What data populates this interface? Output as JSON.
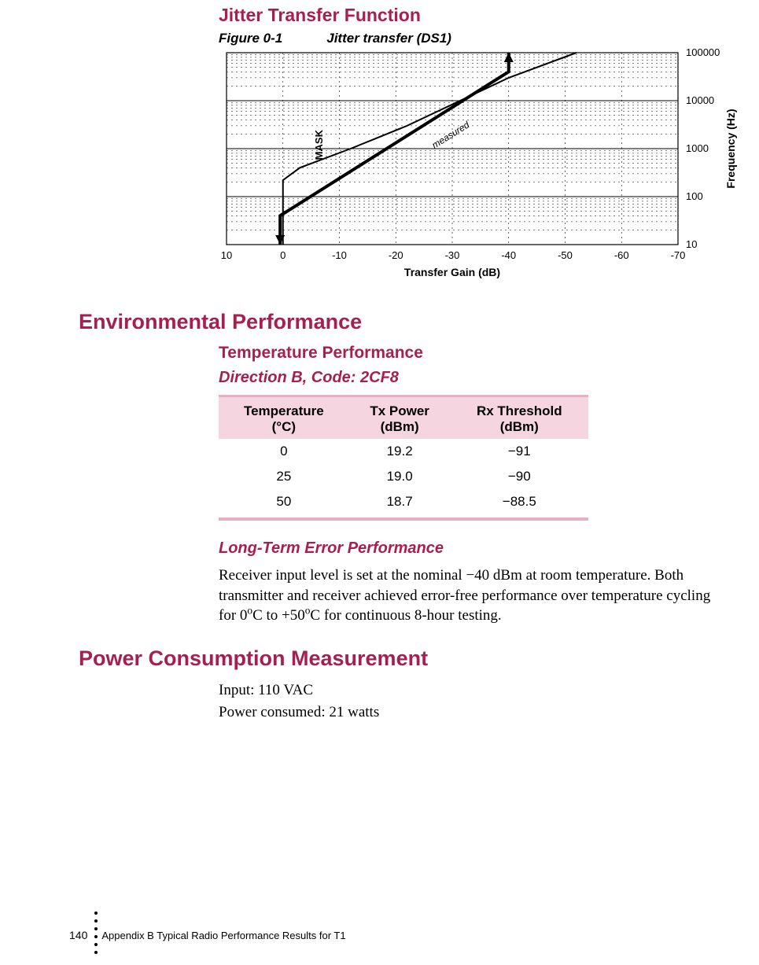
{
  "section_jitter": {
    "title": "Jitter Transfer Function",
    "figure_label": "Figure 0-1",
    "figure_title": "Jitter transfer (DS1)"
  },
  "chart": {
    "type": "line",
    "plot_bg": "#ffffff",
    "axis_color": "#000000",
    "grid_color": "#000000",
    "minor_grid_dash": "2 4",
    "x_label": "Transfer Gain (dB)",
    "x_label_fontsize": 14,
    "x_label_weight": "bold",
    "y_label": "Frequency (Hz)",
    "y_label_fontsize": 14,
    "y_label_weight": "bold",
    "x_ticks": [
      10,
      0,
      -10,
      -20,
      -30,
      -40,
      -50,
      -60,
      -70
    ],
    "y_ticks": [
      10,
      100,
      1000,
      10000,
      100000
    ],
    "y_tick_labels": [
      "10",
      "100",
      "1000",
      "10000",
      "100000"
    ],
    "y_scale": "log",
    "x_scale": "linear",
    "xlim": [
      10,
      -70
    ],
    "ylim": [
      10,
      100000
    ],
    "mask_label": "MASK",
    "measured_label": "measured",
    "mask_line": {
      "color": "#000000",
      "width": 4,
      "points": [
        {
          "x": 0.5,
          "y": 10
        },
        {
          "x": 0.5,
          "y": 40
        },
        {
          "x": -40,
          "y": 40000
        },
        {
          "x": -40,
          "y": 100000
        }
      ]
    },
    "measured_line": {
      "color": "#000000",
      "width": 2,
      "points": [
        {
          "x": 0,
          "y": 10
        },
        {
          "x": 0,
          "y": 220
        },
        {
          "x": -3,
          "y": 400
        },
        {
          "x": -12,
          "y": 1000
        },
        {
          "x": -22,
          "y": 3000
        },
        {
          "x": -40,
          "y": 30000
        },
        {
          "x": -52,
          "y": 100000
        }
      ]
    }
  },
  "section_env": {
    "title": "Environmental Performance",
    "sub_title": "Temperature Performance",
    "direction_title": "Direction B, Code: 2CF8"
  },
  "temp_table": {
    "columns": [
      {
        "l1": "Temperature",
        "l2": "(°C)"
      },
      {
        "l1": "Tx Power",
        "l2": "(dBm)"
      },
      {
        "l1": "Rx Threshold",
        "l2": "(dBm)"
      }
    ],
    "rows": [
      [
        "0",
        "19.2",
        "−91"
      ],
      [
        "25",
        "19.0",
        "−90"
      ],
      [
        "50",
        "18.7",
        "−88.5"
      ]
    ],
    "header_bg": "#f5d5e0",
    "rule_color": "#e8aec5",
    "font_size": 17
  },
  "long_term": {
    "title": "Long-Term Error Performance",
    "para_pre": "Receiver input level is set at the nominal −40 dBm at room temperature. Both transmitter and receiver achieved error-free performance over temperature cycling for 0",
    "sup1": "o",
    "mid1": "C to +50",
    "sup2": "o",
    "tail": "C for continuous 8-hour testing."
  },
  "power": {
    "title": "Power Consumption Measurement",
    "line1": "Input: 110 VAC",
    "line2": "Power consumed: 21 watts"
  },
  "footer": {
    "page_num": "140",
    "text": "Appendix B   Typical Radio Performance Results for T1"
  }
}
